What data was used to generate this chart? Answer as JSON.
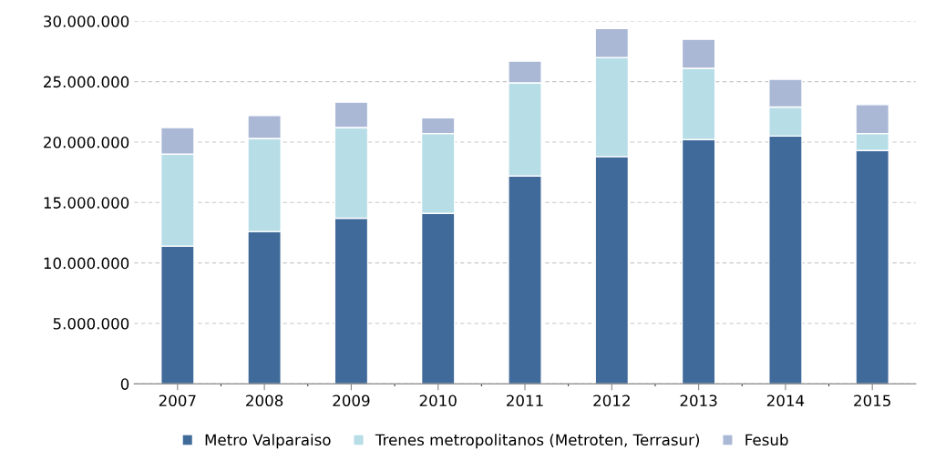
{
  "chart_data": {
    "type": "bar",
    "stacked": true,
    "categories": [
      "2007",
      "2008",
      "2009",
      "2010",
      "2011",
      "2012",
      "2013",
      "2014",
      "2015"
    ],
    "series": [
      {
        "name": "Metro Valparaiso",
        "color": "#406a9a",
        "values": [
          11400000,
          12600000,
          13700000,
          14100000,
          17200000,
          18800000,
          20200000,
          20500000,
          19300000
        ]
      },
      {
        "name": "Trenes metropolitanos (Metroten, Terrasur)",
        "color": "#b7dde7",
        "values": [
          7600000,
          7700000,
          7500000,
          6600000,
          7700000,
          8200000,
          5900000,
          2400000,
          1400000
        ]
      },
      {
        "name": "Fesub",
        "color": "#aab8d6",
        "values": [
          2200000,
          1900000,
          2100000,
          1300000,
          1800000,
          2400000,
          2400000,
          2300000,
          2400000
        ]
      }
    ],
    "ylim": [
      0,
      30000000
    ],
    "yticks": [
      {
        "value": 0,
        "label": "0"
      },
      {
        "value": 5000000,
        "label": "5.000.000"
      },
      {
        "value": 10000000,
        "label": "10.000.000"
      },
      {
        "value": 15000000,
        "label": "15.000.000"
      },
      {
        "value": 20000000,
        "label": "20.000.000"
      },
      {
        "value": 25000000,
        "label": "25.000.000"
      },
      {
        "value": 30000000,
        "label": "30.000.000"
      }
    ],
    "grid": "y",
    "legend": "bottom"
  }
}
